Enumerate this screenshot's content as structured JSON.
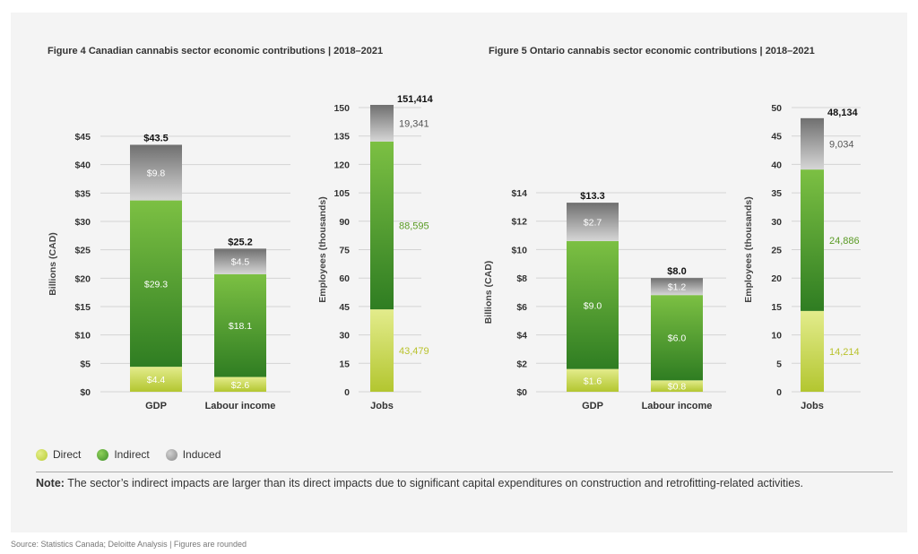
{
  "legend": {
    "direct": "Direct",
    "indirect": "Indirect",
    "induced": "Induced"
  },
  "colors": {
    "direct": "#c8d94a",
    "indirect": "#5faa35",
    "induced": "#a5a5a5",
    "grid": "#d3d3d3"
  },
  "note": {
    "label": "Note:",
    "text": " The sector’s indirect impacts are larger than its direct impacts due to significant capital expenditures on construction and retrofitting-related activities."
  },
  "source": "Source:  Statistics Canada; Deloitte Analysis | Figures are rounded",
  "chart_data": [
    {
      "type": "bar",
      "title": "Figure 4  Canadian cannabis sector economic contributions | 2018–2021",
      "panels": [
        {
          "ylabel": "Billions (CAD)",
          "ylim": [
            0,
            45
          ],
          "ticks": [
            "$0",
            "$5",
            "$10",
            "$15",
            "$20",
            "$25",
            "$30",
            "$35",
            "$40",
            "$45"
          ],
          "categories": [
            "GDP",
            "Labour income"
          ],
          "series": [
            {
              "name": "Direct",
              "values": [
                4.4,
                2.6
              ],
              "labels": [
                "$4.4",
                "$2.6"
              ]
            },
            {
              "name": "Indirect",
              "values": [
                29.3,
                18.1
              ],
              "labels": [
                "$29.3",
                "$18.1"
              ]
            },
            {
              "name": "Induced",
              "values": [
                9.8,
                4.5
              ],
              "labels": [
                "$9.8",
                "$4.5"
              ]
            }
          ],
          "totals": [
            "$43.5",
            "$25.2"
          ]
        },
        {
          "ylabel": "Employees (thousands)",
          "ylim": [
            0,
            150
          ],
          "ticks": [
            "0",
            "15",
            "30",
            "45",
            "60",
            "75",
            "90",
            "105",
            "120",
            "135",
            "150"
          ],
          "categories": [
            "Jobs"
          ],
          "series": [
            {
              "name": "Direct",
              "values": [
                43.479
              ],
              "labels": [
                "43,479"
              ]
            },
            {
              "name": "Indirect",
              "values": [
                88.595
              ],
              "labels": [
                "88,595"
              ]
            },
            {
              "name": "Induced",
              "values": [
                19.341
              ],
              "labels": [
                "19,341"
              ]
            }
          ],
          "totals": [
            "151,414"
          ]
        }
      ]
    },
    {
      "type": "bar",
      "title": "Figure 5  Ontario cannabis sector economic contributions | 2018–2021",
      "panels": [
        {
          "ylabel": "Billions (CAD)",
          "ylim": [
            0,
            14
          ],
          "ticks": [
            "$0",
            "$2",
            "$4",
            "$6",
            "$8",
            "$10",
            "$12",
            "$14"
          ],
          "categories": [
            "GDP",
            "Labour income"
          ],
          "series": [
            {
              "name": "Direct",
              "values": [
                1.6,
                0.8
              ],
              "labels": [
                "$1.6",
                "$0.8"
              ]
            },
            {
              "name": "Indirect",
              "values": [
                9.0,
                6.0
              ],
              "labels": [
                "$9.0",
                "$6.0"
              ]
            },
            {
              "name": "Induced",
              "values": [
                2.7,
                1.2
              ],
              "labels": [
                "$2.7",
                "$1.2"
              ]
            }
          ],
          "totals": [
            "$13.3",
            "$8.0"
          ]
        },
        {
          "ylabel": "Employees (thousands)",
          "ylim": [
            0,
            50
          ],
          "ticks": [
            "0",
            "5",
            "10",
            "15",
            "20",
            "25",
            "30",
            "35",
            "40",
            "45",
            "50"
          ],
          "categories": [
            "Jobs"
          ],
          "series": [
            {
              "name": "Direct",
              "values": [
                14.214
              ],
              "labels": [
                "14,214"
              ]
            },
            {
              "name": "Indirect",
              "values": [
                24.886
              ],
              "labels": [
                "24,886"
              ]
            },
            {
              "name": "Induced",
              "values": [
                9.034
              ],
              "labels": [
                "9,034"
              ]
            }
          ],
          "totals": [
            "48,134"
          ]
        }
      ]
    }
  ]
}
